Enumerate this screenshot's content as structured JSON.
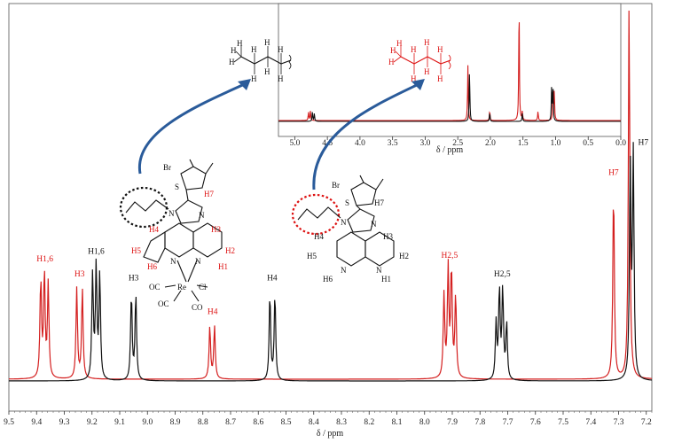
{
  "colors": {
    "complex": "#d41f1f",
    "ligand": "#111111",
    "arrow": "#2a5b9a"
  },
  "chart_data": [
    {
      "type": "line",
      "title": "",
      "xlabel": "δ / ppm",
      "ylabel": "",
      "xlim": [
        9.5,
        7.18
      ],
      "x_reversed": true,
      "grid": false,
      "x_ticks": [
        "9.5",
        "9.4",
        "9.3",
        "9.2",
        "9.1",
        "9.0",
        "8.9",
        "8.8",
        "8.7",
        "8.6",
        "8.5",
        "8.4",
        "8.3",
        "8.2",
        "8.1",
        "8.0",
        "7.9",
        "7.8",
        "7.7",
        "7.6",
        "7.5",
        "7.4",
        "7.3",
        "7.2"
      ],
      "series": [
        {
          "color": "#d41f1f",
          "peaks": [
            {
              "ppm": 9.385,
              "height": 0.26
            },
            {
              "ppm": 9.372,
              "height": 0.28
            },
            {
              "ppm": 9.358,
              "height": 0.25
            },
            {
              "ppm": 9.255,
              "height": 0.24
            },
            {
              "ppm": 9.235,
              "height": 0.24
            },
            {
              "ppm": 8.775,
              "height": 0.14
            },
            {
              "ppm": 8.758,
              "height": 0.14
            },
            {
              "ppm": 7.93,
              "height": 0.22
            },
            {
              "ppm": 7.915,
              "height": 0.29
            },
            {
              "ppm": 7.903,
              "height": 0.29
            },
            {
              "ppm": 7.888,
              "height": 0.22
            },
            {
              "ppm": 7.318,
              "height": 0.51
            },
            {
              "ppm": 7.262,
              "height": 1.0
            }
          ]
        },
        {
          "color": "#111111",
          "peaks": [
            {
              "ppm": 9.198,
              "height": 0.28
            },
            {
              "ppm": 9.185,
              "height": 0.3
            },
            {
              "ppm": 9.172,
              "height": 0.28
            },
            {
              "ppm": 9.058,
              "height": 0.23
            },
            {
              "ppm": 9.042,
              "height": 0.23
            },
            {
              "ppm": 8.558,
              "height": 0.23
            },
            {
              "ppm": 8.54,
              "height": 0.23
            },
            {
              "ppm": 7.742,
              "height": 0.15
            },
            {
              "ppm": 7.73,
              "height": 0.24
            },
            {
              "ppm": 7.718,
              "height": 0.24
            },
            {
              "ppm": 7.704,
              "height": 0.15
            },
            {
              "ppm": 7.258,
              "height": 0.57
            },
            {
              "ppm": 7.247,
              "height": 0.59
            }
          ]
        }
      ],
      "annotations": [
        {
          "text": "H1,6",
          "ppm": 9.37,
          "series": "complex"
        },
        {
          "text": "H3",
          "ppm": 9.245,
          "series": "complex"
        },
        {
          "text": "H1,6",
          "ppm": 9.185,
          "series": "ligand"
        },
        {
          "text": "H3",
          "ppm": 9.05,
          "series": "ligand"
        },
        {
          "text": "H4",
          "ppm": 8.765,
          "series": "complex"
        },
        {
          "text": "H4",
          "ppm": 8.55,
          "series": "ligand"
        },
        {
          "text": "H2,5",
          "ppm": 7.91,
          "series": "complex"
        },
        {
          "text": "H2,5",
          "ppm": 7.72,
          "series": "ligand"
        },
        {
          "text": "H7",
          "ppm": 7.318,
          "series": "complex"
        },
        {
          "text": "H7",
          "ppm": 7.243,
          "series": "ligand"
        }
      ]
    },
    {
      "type": "line",
      "title": "",
      "xlabel": "δ / ppm",
      "ylabel": "",
      "xlim": [
        5.25,
        0.0
      ],
      "x_reversed": true,
      "grid": false,
      "x_ticks": [
        "5.0",
        "4.5",
        "4.0",
        "3.5",
        "3.0",
        "2.5",
        "2.0",
        "1.5",
        "1.0",
        "0.5",
        "0.0"
      ],
      "series": [
        {
          "color": "#d41f1f",
          "peaks": [
            {
              "ppm": 4.79,
              "height": 0.07
            },
            {
              "ppm": 4.76,
              "height": 0.08
            },
            {
              "ppm": 2.345,
              "height": 0.48
            },
            {
              "ppm": 2.01,
              "height": 0.08
            },
            {
              "ppm": 1.56,
              "height": 1.0
            },
            {
              "ppm": 1.51,
              "height": 0.07
            },
            {
              "ppm": 1.27,
              "height": 0.08
            },
            {
              "ppm": 1.04,
              "height": 0.25
            },
            {
              "ppm": 1.02,
              "height": 0.24
            }
          ]
        },
        {
          "color": "#111111",
          "peaks": [
            {
              "ppm": 4.73,
              "height": 0.08
            },
            {
              "ppm": 4.7,
              "height": 0.07
            },
            {
              "ppm": 2.32,
              "height": 0.44
            },
            {
              "ppm": 2.01,
              "height": 0.07
            },
            {
              "ppm": 1.51,
              "height": 0.07
            },
            {
              "ppm": 1.06,
              "height": 0.3
            },
            {
              "ppm": 1.04,
              "height": 0.28
            }
          ]
        }
      ]
    }
  ],
  "structures": {
    "complex": {
      "atoms": [
        "Br",
        "S",
        "N",
        "N",
        "N",
        "N",
        "Re",
        "Cl",
        "OC",
        "OC",
        "CO"
      ],
      "protons": [
        "H7",
        "H4",
        "H3",
        "H5",
        "H2",
        "H6",
        "H1"
      ],
      "chain_h": [
        "H",
        "H",
        "H",
        "H",
        "H",
        "H",
        "H",
        "H",
        "H"
      ]
    },
    "ligand": {
      "atoms": [
        "Br",
        "S",
        "N",
        "N",
        "N",
        "N"
      ],
      "protons": [
        "H7",
        "H4",
        "H3",
        "H5",
        "H2",
        "H6",
        "H1"
      ],
      "chain_h": [
        "H",
        "H",
        "H",
        "H",
        "H",
        "H",
        "H",
        "H",
        "H"
      ]
    }
  }
}
